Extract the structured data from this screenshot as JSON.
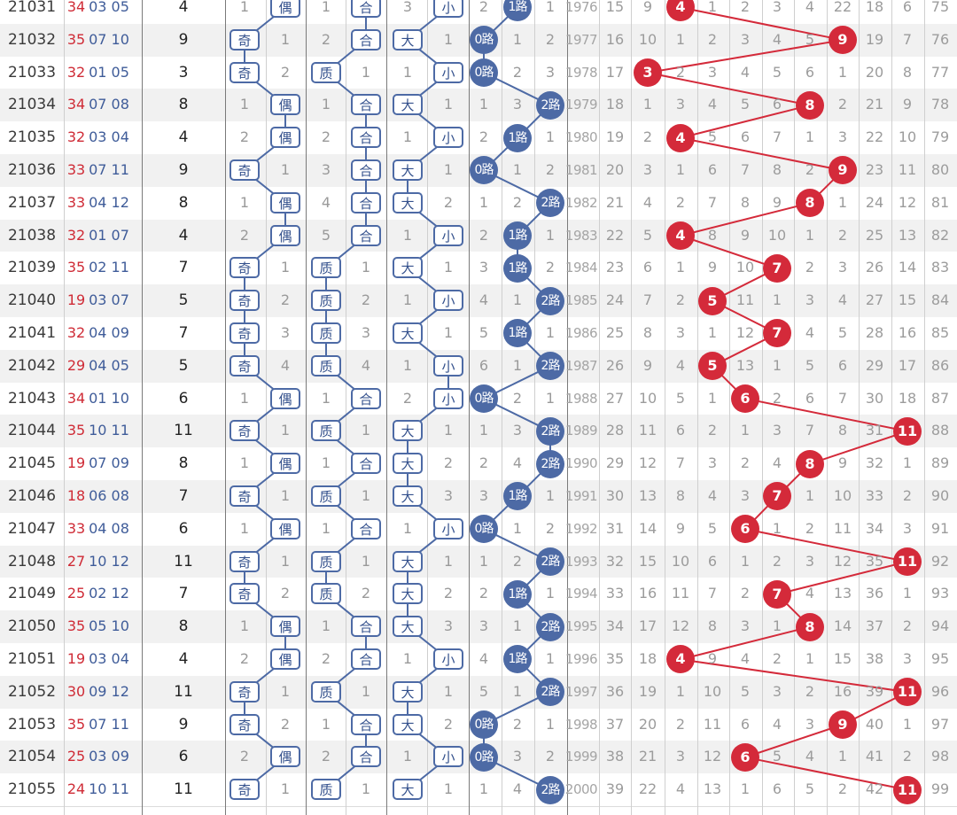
{
  "colors": {
    "tag_border": "#4d6aa5",
    "road_ball": "#4d6aa5",
    "sum_ball": "#d42a3a",
    "prize_red": "#cf2b36",
    "prize_blue": "#3f5c99"
  },
  "labels": {
    "odd": "奇",
    "even": "偶",
    "prime": "质",
    "composite": "合",
    "big": "大",
    "small": "小",
    "road0": "0路",
    "road1": "1路",
    "road2": "2路"
  },
  "rows": [
    {
      "issue": "21031",
      "n1": "34",
      "n2": "03 05",
      "sum": "4",
      "oe": "E",
      "om": "1",
      "pc": "C",
      "pm": "1",
      "bs": "S",
      "bm": "3",
      "road": 1,
      "rm": [
        "2",
        "1"
      ],
      "year": "1976",
      "misc": [
        "15",
        "9"
      ],
      "rest": [
        "1",
        "2",
        "3",
        "4",
        "22",
        "18",
        "6",
        "75"
      ]
    },
    {
      "issue": "21032",
      "n1": "35",
      "n2": "07 10",
      "sum": "9",
      "oe": "O",
      "om": "1",
      "pc": "C",
      "pm": "2",
      "bs": "B",
      "bm": "1",
      "road": 0,
      "rm": [
        "1",
        "2"
      ],
      "year": "1977",
      "misc": [
        "16",
        "10"
      ],
      "rest": [
        "1",
        "2",
        "3",
        "4",
        "5",
        "19",
        "7",
        "76"
      ]
    },
    {
      "issue": "21033",
      "n1": "32",
      "n2": "01 05",
      "sum": "3",
      "oe": "O",
      "om": "2",
      "pc": "P",
      "pm": "1",
      "bs": "S",
      "bm": "1",
      "road": 0,
      "rm": [
        "2",
        "3"
      ],
      "year": "1978",
      "misc": [
        "17"
      ],
      "rest": [
        "2",
        "3",
        "4",
        "5",
        "6",
        "1",
        "20",
        "8",
        "77"
      ]
    },
    {
      "issue": "21034",
      "n1": "34",
      "n2": "07 08",
      "sum": "8",
      "oe": "E",
      "om": "1",
      "pc": "C",
      "pm": "1",
      "bs": "B",
      "bm": "1",
      "road": 2,
      "rm": [
        "1",
        "3"
      ],
      "year": "1979",
      "misc": [
        "18",
        "1"
      ],
      "rest": [
        "3",
        "4",
        "5",
        "6",
        "2",
        "21",
        "9",
        "78"
      ]
    },
    {
      "issue": "21035",
      "n1": "32",
      "n2": "03 04",
      "sum": "4",
      "oe": "E",
      "om": "2",
      "pc": "C",
      "pm": "2",
      "bs": "S",
      "bm": "1",
      "road": 1,
      "rm": [
        "2",
        "1"
      ],
      "year": "1980",
      "misc": [
        "19",
        "2"
      ],
      "rest": [
        "5",
        "6",
        "7",
        "1",
        "3",
        "22",
        "10",
        "79"
      ]
    },
    {
      "issue": "21036",
      "n1": "33",
      "n2": "07 11",
      "sum": "9",
      "oe": "O",
      "om": "1",
      "pc": "C",
      "pm": "3",
      "bs": "B",
      "bm": "1",
      "road": 0,
      "rm": [
        "1",
        "2"
      ],
      "year": "1981",
      "misc": [
        "20",
        "3"
      ],
      "rest": [
        "1",
        "6",
        "7",
        "8",
        "2",
        "23",
        "11",
        "80"
      ]
    },
    {
      "issue": "21037",
      "n1": "33",
      "n2": "04 12",
      "sum": "8",
      "oe": "E",
      "om": "1",
      "pc": "C",
      "pm": "4",
      "bs": "B",
      "bm": "2",
      "road": 2,
      "rm": [
        "1",
        "2"
      ],
      "year": "1982",
      "misc": [
        "21",
        "4"
      ],
      "rest": [
        "2",
        "7",
        "8",
        "9",
        "1",
        "24",
        "12",
        "81"
      ]
    },
    {
      "issue": "21038",
      "n1": "32",
      "n2": "01 07",
      "sum": "4",
      "oe": "E",
      "om": "2",
      "pc": "C",
      "pm": "5",
      "bs": "S",
      "bm": "1",
      "road": 1,
      "rm": [
        "2",
        "1"
      ],
      "year": "1983",
      "misc": [
        "22",
        "5"
      ],
      "rest": [
        "8",
        "9",
        "10",
        "1",
        "2",
        "25",
        "13",
        "82"
      ]
    },
    {
      "issue": "21039",
      "n1": "35",
      "n2": "02 11",
      "sum": "7",
      "oe": "O",
      "om": "1",
      "pc": "P",
      "pm": "1",
      "bs": "B",
      "bm": "1",
      "road": 1,
      "rm": [
        "3",
        "2"
      ],
      "year": "1984",
      "misc": [
        "23",
        "6"
      ],
      "rest": [
        "1",
        "9",
        "10",
        "2",
        "3",
        "26",
        "14",
        "83"
      ]
    },
    {
      "issue": "21040",
      "n1": "19",
      "n2": "03 07",
      "sum": "5",
      "oe": "O",
      "om": "2",
      "pc": "P",
      "pm": "2",
      "bs": "S",
      "bm": "1",
      "road": 2,
      "rm": [
        "4",
        "1"
      ],
      "year": "1985",
      "misc": [
        "24",
        "7"
      ],
      "rest": [
        "2",
        "11",
        "1",
        "3",
        "4",
        "27",
        "15",
        "84"
      ]
    },
    {
      "issue": "21041",
      "n1": "32",
      "n2": "04 09",
      "sum": "7",
      "oe": "O",
      "om": "3",
      "pc": "P",
      "pm": "3",
      "bs": "B",
      "bm": "1",
      "road": 1,
      "rm": [
        "5",
        "1"
      ],
      "year": "1986",
      "misc": [
        "25",
        "8"
      ],
      "rest": [
        "3",
        "1",
        "12",
        "4",
        "5",
        "28",
        "16",
        "85"
      ]
    },
    {
      "issue": "21042",
      "n1": "29",
      "n2": "04 05",
      "sum": "5",
      "oe": "O",
      "om": "4",
      "pc": "P",
      "pm": "4",
      "bs": "S",
      "bm": "1",
      "road": 2,
      "rm": [
        "6",
        "1"
      ],
      "year": "1987",
      "misc": [
        "26",
        "9"
      ],
      "rest": [
        "4",
        "13",
        "1",
        "5",
        "6",
        "29",
        "17",
        "86"
      ]
    },
    {
      "issue": "21043",
      "n1": "34",
      "n2": "01 10",
      "sum": "6",
      "oe": "E",
      "om": "1",
      "pc": "C",
      "pm": "1",
      "bs": "S",
      "bm": "2",
      "road": 0,
      "rm": [
        "2",
        "1"
      ],
      "year": "1988",
      "misc": [
        "27",
        "10"
      ],
      "rest": [
        "5",
        "1",
        "2",
        "6",
        "7",
        "30",
        "18",
        "87"
      ]
    },
    {
      "issue": "21044",
      "n1": "35",
      "n2": "10 11",
      "sum": "11",
      "oe": "O",
      "om": "1",
      "pc": "P",
      "pm": "1",
      "bs": "B",
      "bm": "1",
      "road": 2,
      "rm": [
        "1",
        "3"
      ],
      "year": "1989",
      "misc": [
        "28",
        "11"
      ],
      "rest": [
        "6",
        "2",
        "1",
        "3",
        "7",
        "8",
        "31",
        "88"
      ]
    },
    {
      "issue": "21045",
      "n1": "19",
      "n2": "07 09",
      "sum": "8",
      "oe": "E",
      "om": "1",
      "pc": "C",
      "pm": "1",
      "bs": "B",
      "bm": "2",
      "road": 2,
      "rm": [
        "2",
        "4"
      ],
      "year": "1990",
      "misc": [
        "29",
        "12"
      ],
      "rest": [
        "7",
        "3",
        "2",
        "4",
        "9",
        "32",
        "1",
        "89"
      ]
    },
    {
      "issue": "21046",
      "n1": "18",
      "n2": "06 08",
      "sum": "7",
      "oe": "O",
      "om": "1",
      "pc": "P",
      "pm": "1",
      "bs": "B",
      "bm": "3",
      "road": 1,
      "rm": [
        "3",
        "1"
      ],
      "year": "1991",
      "misc": [
        "30",
        "13"
      ],
      "rest": [
        "8",
        "4",
        "3",
        "1",
        "10",
        "33",
        "2",
        "90"
      ]
    },
    {
      "issue": "21047",
      "n1": "33",
      "n2": "04 08",
      "sum": "6",
      "oe": "E",
      "om": "1",
      "pc": "C",
      "pm": "1",
      "bs": "S",
      "bm": "1",
      "road": 0,
      "rm": [
        "1",
        "2"
      ],
      "year": "1992",
      "misc": [
        "31",
        "14"
      ],
      "rest": [
        "9",
        "5",
        "1",
        "2",
        "11",
        "34",
        "3",
        "91"
      ]
    },
    {
      "issue": "21048",
      "n1": "27",
      "n2": "10 12",
      "sum": "11",
      "oe": "O",
      "om": "1",
      "pc": "P",
      "pm": "1",
      "bs": "B",
      "bm": "1",
      "road": 2,
      "rm": [
        "1",
        "2"
      ],
      "year": "1993",
      "misc": [
        "32",
        "15"
      ],
      "rest": [
        "10",
        "6",
        "1",
        "2",
        "3",
        "12",
        "35",
        "92"
      ]
    },
    {
      "issue": "21049",
      "n1": "25",
      "n2": "02 12",
      "sum": "7",
      "oe": "O",
      "om": "2",
      "pc": "P",
      "pm": "2",
      "bs": "B",
      "bm": "2",
      "road": 1,
      "rm": [
        "2",
        "1"
      ],
      "year": "1994",
      "misc": [
        "33",
        "16"
      ],
      "rest": [
        "11",
        "7",
        "2",
        "4",
        "13",
        "36",
        "1",
        "93"
      ]
    },
    {
      "issue": "21050",
      "n1": "35",
      "n2": "05 10",
      "sum": "8",
      "oe": "E",
      "om": "1",
      "pc": "C",
      "pm": "1",
      "bs": "B",
      "bm": "3",
      "road": 2,
      "rm": [
        "3",
        "1"
      ],
      "year": "1995",
      "misc": [
        "34",
        "17"
      ],
      "rest": [
        "12",
        "8",
        "3",
        "1",
        "14",
        "37",
        "2",
        "94"
      ]
    },
    {
      "issue": "21051",
      "n1": "19",
      "n2": "03 04",
      "sum": "4",
      "oe": "E",
      "om": "2",
      "pc": "C",
      "pm": "2",
      "bs": "S",
      "bm": "1",
      "road": 1,
      "rm": [
        "4",
        "1"
      ],
      "year": "1996",
      "misc": [
        "35",
        "18"
      ],
      "rest": [
        "9",
        "4",
        "2",
        "1",
        "15",
        "38",
        "3",
        "95"
      ]
    },
    {
      "issue": "21052",
      "n1": "30",
      "n2": "09 12",
      "sum": "11",
      "oe": "O",
      "om": "1",
      "pc": "P",
      "pm": "1",
      "bs": "B",
      "bm": "1",
      "road": 2,
      "rm": [
        "5",
        "1"
      ],
      "year": "1997",
      "misc": [
        "36",
        "19"
      ],
      "rest": [
        "1",
        "10",
        "5",
        "3",
        "2",
        "16",
        "39",
        "96"
      ]
    },
    {
      "issue": "21053",
      "n1": "35",
      "n2": "07 11",
      "sum": "9",
      "oe": "O",
      "om": "2",
      "pc": "C",
      "pm": "1",
      "bs": "B",
      "bm": "2",
      "road": 0,
      "rm": [
        "2",
        "1"
      ],
      "year": "1998",
      "misc": [
        "37",
        "20"
      ],
      "rest": [
        "2",
        "11",
        "6",
        "4",
        "3",
        "40",
        "1",
        "97"
      ]
    },
    {
      "issue": "21054",
      "n1": "25",
      "n2": "03 09",
      "sum": "6",
      "oe": "E",
      "om": "2",
      "pc": "C",
      "pm": "2",
      "bs": "S",
      "bm": "1",
      "road": 0,
      "rm": [
        "3",
        "2"
      ],
      "year": "1999",
      "misc": [
        "38",
        "21"
      ],
      "rest": [
        "3",
        "12",
        "5",
        "4",
        "1",
        "41",
        "2",
        "98"
      ]
    },
    {
      "issue": "21055",
      "n1": "24",
      "n2": "10 11",
      "sum": "11",
      "oe": "O",
      "om": "1",
      "pc": "P",
      "pm": "1",
      "bs": "B",
      "bm": "1",
      "road": 2,
      "rm": [
        "1",
        "4"
      ],
      "year": "2000",
      "misc": [
        "39",
        "22"
      ],
      "rest": [
        "4",
        "13",
        "1",
        "6",
        "5",
        "2",
        "42",
        "99"
      ]
    }
  ]
}
